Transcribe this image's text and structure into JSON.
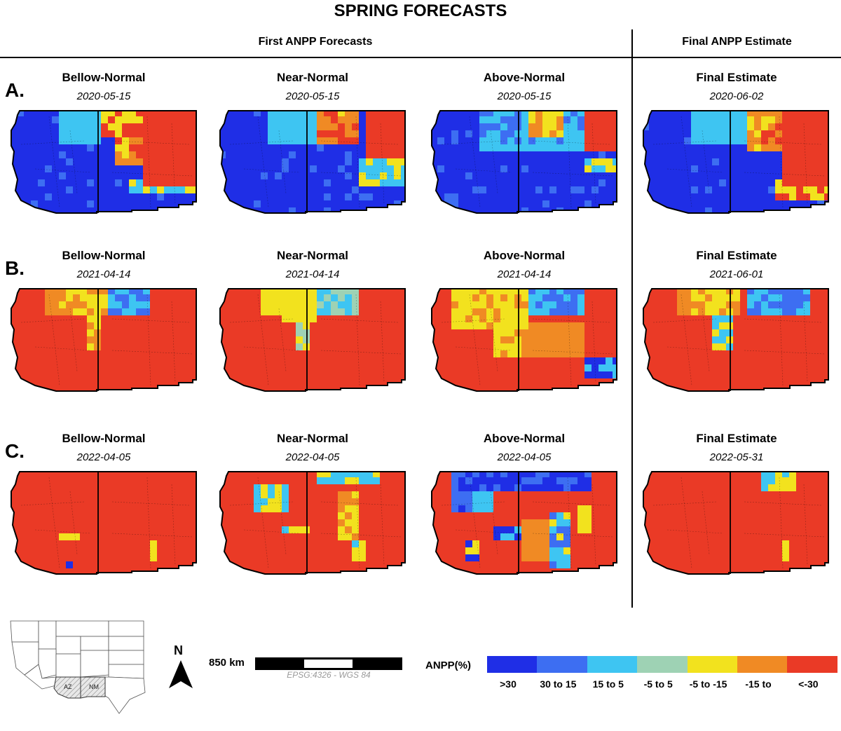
{
  "title": "SPRING FORECASTS",
  "headers": {
    "first": "First ANPP Forecasts",
    "final": "Final ANPP Estimate"
  },
  "rows": [
    {
      "letter": "A.",
      "panels": [
        {
          "title": "Bellow-Normal",
          "date": "2020-05-15",
          "scheme": "A0"
        },
        {
          "title": "Near-Normal",
          "date": "2020-05-15",
          "scheme": "A1"
        },
        {
          "title": "Above-Normal",
          "date": "2020-05-15",
          "scheme": "A2"
        },
        {
          "title": "Final Estimate",
          "date": "2020-06-02",
          "scheme": "A3"
        }
      ]
    },
    {
      "letter": "B.",
      "panels": [
        {
          "title": "Bellow-Normal",
          "date": "2021-04-14",
          "scheme": "B0"
        },
        {
          "title": "Near-Normal",
          "date": "2021-04-14",
          "scheme": "B1"
        },
        {
          "title": "Above-Normal",
          "date": "2021-04-14",
          "scheme": "B2"
        },
        {
          "title": "Final Estimate",
          "date": "2021-06-01",
          "scheme": "B3"
        }
      ]
    },
    {
      "letter": "C.",
      "panels": [
        {
          "title": "Bellow-Normal",
          "date": "2022-04-05",
          "scheme": "C0"
        },
        {
          "title": "Near-Normal",
          "date": "2022-04-05",
          "scheme": "C1"
        },
        {
          "title": "Above-Normal",
          "date": "2022-04-05",
          "scheme": "C2"
        },
        {
          "title": "Final Estimate",
          "date": "2022-05-31",
          "scheme": "C3"
        }
      ]
    }
  ],
  "north_label": "N",
  "scale": {
    "label": "850 km",
    "crs": "EPSG:4326 - WGS 84"
  },
  "inset": {
    "state_labels": [
      "AZ",
      "NM"
    ]
  },
  "legend": {
    "title": "ANPP(%)",
    "classes": [
      {
        "label": ">30",
        "color": "#1f2ee6"
      },
      {
        "label": "30 to 15",
        "color": "#3d6ef2"
      },
      {
        "label": "15 to 5",
        "color": "#3ec5f2"
      },
      {
        "label": "-5 to 5",
        "color": "#9ed2b4"
      },
      {
        "label": "-5 to -15",
        "color": "#f2e21e"
      },
      {
        "label": "-15 to",
        "color": "#f08a24"
      },
      {
        "label": "<-30",
        "color": "#ea3a26"
      }
    ]
  }
}
